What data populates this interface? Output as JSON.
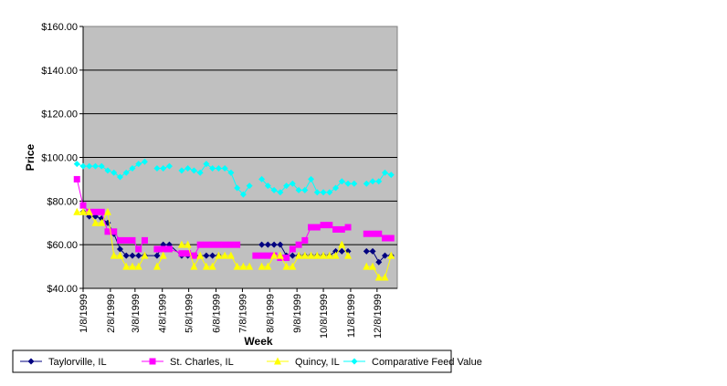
{
  "chart_data": {
    "type": "line",
    "title": "",
    "xlabel": "Week",
    "ylabel": "Price",
    "ylim": [
      40,
      160
    ],
    "y_ticks": [
      40,
      60,
      80,
      100,
      120,
      140,
      160
    ],
    "y_tick_labels": [
      "$40.00",
      "$60.00",
      "$80.00",
      "$100.00",
      "$120.00",
      "$140.00",
      "$160.00"
    ],
    "xlim": [
      "1999-01-08",
      "1999-12-31"
    ],
    "x_tick_labels": [
      {
        "date": "1999-01-08",
        "label": "1/8/1999"
      },
      {
        "date": "1999-02-08",
        "label": "2/8/1999"
      },
      {
        "date": "1999-03-08",
        "label": "3/8/1999"
      },
      {
        "date": "1999-04-08",
        "label": "4/8/1999"
      },
      {
        "date": "1999-05-08",
        "label": "5/8/1999"
      },
      {
        "date": "1999-06-08",
        "label": "6/8/1999"
      },
      {
        "date": "1999-07-08",
        "label": "7/8/1999"
      },
      {
        "date": "1999-08-08",
        "label": "8/8/1999"
      },
      {
        "date": "1999-09-08",
        "label": "9/8/1999"
      },
      {
        "date": "1999-10-08",
        "label": "10/8/1999"
      },
      {
        "date": "1999-11-08",
        "label": "11/8/1999"
      },
      {
        "date": "1999-12-08",
        "label": "12/8/1999"
      }
    ],
    "grid": "horizontal major",
    "plot_background": "#C0C0C0",
    "legend_position": "bottom",
    "series": [
      {
        "name": "Taylorville, IL",
        "color": "#000080",
        "marker": "diamond",
        "points": [
          [
            "1999-01-08",
            75
          ],
          [
            "1999-01-15",
            73
          ],
          [
            "1999-01-22",
            73
          ],
          [
            "1999-01-29",
            72
          ],
          [
            "1999-02-05",
            70
          ],
          [
            "1999-02-12",
            65
          ],
          [
            "1999-02-19",
            58
          ],
          [
            "1999-02-26",
            55
          ],
          [
            "1999-03-05",
            55
          ],
          [
            "1999-03-12",
            55
          ],
          [
            "1999-03-19",
            55
          ],
          [
            "1999-04-02",
            55
          ],
          [
            "1999-04-09",
            60
          ],
          [
            "1999-04-16",
            60
          ],
          [
            "1999-04-30",
            55
          ],
          [
            "1999-05-07",
            55
          ],
          [
            "1999-05-14",
            55
          ],
          [
            "1999-05-28",
            55
          ],
          [
            "1999-06-04",
            55
          ],
          [
            "1999-06-11",
            55
          ]
        ]
      },
      {
        "name": "Taylorville, IL",
        "color": "#000080",
        "marker": "diamond",
        "points": [
          [
            "1999-07-30",
            60
          ],
          [
            "1999-08-06",
            60
          ],
          [
            "1999-08-13",
            60
          ],
          [
            "1999-08-20",
            60
          ],
          [
            "1999-08-27",
            55
          ],
          [
            "1999-09-03",
            55
          ],
          [
            "1999-09-10",
            55
          ],
          [
            "1999-09-17",
            55
          ],
          [
            "1999-09-24",
            55
          ],
          [
            "1999-10-01",
            55
          ],
          [
            "1999-10-08",
            55
          ],
          [
            "1999-10-15",
            55
          ],
          [
            "1999-10-22",
            57
          ],
          [
            "1999-10-29",
            57
          ],
          [
            "1999-11-05",
            57
          ]
        ]
      },
      {
        "name": "Taylorville, IL",
        "color": "#000080",
        "marker": "diamond",
        "points": [
          [
            "1999-11-26",
            57
          ],
          [
            "1999-12-03",
            57
          ],
          [
            "1999-12-10",
            52
          ],
          [
            "1999-12-17",
            55
          ],
          [
            "1999-12-24",
            55
          ]
        ]
      },
      {
        "name": "St. Charles, IL",
        "color": "#FF00FF",
        "marker": "square",
        "points": [
          [
            "1999-01-01",
            90
          ],
          [
            "1999-01-08",
            78
          ],
          [
            "1999-01-15",
            75
          ],
          [
            "1999-01-22",
            75
          ],
          [
            "1999-01-29",
            75
          ],
          [
            "1999-02-05",
            66
          ],
          [
            "1999-02-12",
            66
          ],
          [
            "1999-02-19",
            62
          ],
          [
            "1999-02-26",
            62
          ],
          [
            "1999-03-05",
            62
          ],
          [
            "1999-03-12",
            58
          ],
          [
            "1999-03-19",
            62
          ]
        ]
      },
      {
        "name": "St. Charles, IL",
        "color": "#FF00FF",
        "marker": "square",
        "points": [
          [
            "1999-04-02",
            58
          ],
          [
            "1999-04-09",
            58
          ],
          [
            "1999-04-16",
            58
          ],
          [
            "1999-04-30",
            56
          ],
          [
            "1999-05-07",
            56
          ],
          [
            "1999-05-14",
            55
          ],
          [
            "1999-05-21",
            60
          ],
          [
            "1999-05-28",
            60
          ],
          [
            "1999-06-04",
            60
          ],
          [
            "1999-06-11",
            60
          ],
          [
            "1999-06-18",
            60
          ],
          [
            "1999-06-25",
            60
          ],
          [
            "1999-07-02",
            60
          ]
        ]
      },
      {
        "name": "St. Charles, IL",
        "color": "#FF00FF",
        "marker": "square",
        "points": [
          [
            "1999-07-23",
            55
          ],
          [
            "1999-07-30",
            55
          ],
          [
            "1999-08-06",
            55
          ],
          [
            "1999-08-13",
            55
          ],
          [
            "1999-08-20",
            54
          ],
          [
            "1999-08-27",
            54
          ],
          [
            "1999-09-03",
            58
          ],
          [
            "1999-09-10",
            60
          ],
          [
            "1999-09-17",
            62
          ],
          [
            "1999-09-24",
            68
          ],
          [
            "1999-10-01",
            68
          ],
          [
            "1999-10-08",
            69
          ],
          [
            "1999-10-15",
            69
          ],
          [
            "1999-10-22",
            67
          ],
          [
            "1999-10-29",
            67
          ],
          [
            "1999-11-05",
            68
          ]
        ]
      },
      {
        "name": "St. Charles, IL",
        "color": "#FF00FF",
        "marker": "square",
        "points": [
          [
            "1999-11-26",
            65
          ],
          [
            "1999-12-03",
            65
          ],
          [
            "1999-12-10",
            65
          ],
          [
            "1999-12-17",
            63
          ],
          [
            "1999-12-24",
            63
          ]
        ]
      },
      {
        "name": "Quincy, IL",
        "color": "#FFFF00",
        "marker": "triangle",
        "points": [
          [
            "1999-01-01",
            75
          ],
          [
            "1999-01-08",
            75
          ],
          [
            "1999-01-15",
            75
          ],
          [
            "1999-01-22",
            70
          ],
          [
            "1999-01-29",
            70
          ],
          [
            "1999-02-05",
            75
          ],
          [
            "1999-02-12",
            55
          ],
          [
            "1999-02-19",
            55
          ],
          [
            "1999-02-26",
            50
          ],
          [
            "1999-03-05",
            50
          ],
          [
            "1999-03-12",
            50
          ],
          [
            "1999-03-19",
            55
          ]
        ]
      },
      {
        "name": "Quincy, IL",
        "color": "#FFFF00",
        "marker": "triangle",
        "points": [
          [
            "1999-04-02",
            50
          ],
          [
            "1999-04-09",
            55
          ]
        ]
      },
      {
        "name": "Quincy, IL",
        "color": "#FFFF00",
        "marker": "triangle",
        "points": [
          [
            "1999-04-30",
            60
          ],
          [
            "1999-05-07",
            60
          ],
          [
            "1999-05-14",
            50
          ],
          [
            "1999-05-21",
            55
          ],
          [
            "1999-05-28",
            50
          ],
          [
            "1999-06-04",
            50
          ],
          [
            "1999-06-11",
            55
          ],
          [
            "1999-06-18",
            55
          ],
          [
            "1999-06-25",
            55
          ],
          [
            "1999-07-02",
            50
          ],
          [
            "1999-07-09",
            50
          ],
          [
            "1999-07-16",
            50
          ]
        ]
      },
      {
        "name": "Quincy, IL",
        "color": "#FFFF00",
        "marker": "triangle",
        "points": [
          [
            "1999-07-30",
            50
          ],
          [
            "1999-08-06",
            50
          ],
          [
            "1999-08-13",
            55
          ],
          [
            "1999-08-20",
            55
          ],
          [
            "1999-08-27",
            50
          ],
          [
            "1999-09-03",
            50
          ],
          [
            "1999-09-10",
            55
          ],
          [
            "1999-09-17",
            55
          ],
          [
            "1999-09-24",
            55
          ],
          [
            "1999-10-01",
            55
          ],
          [
            "1999-10-08",
            55
          ],
          [
            "1999-10-15",
            55
          ],
          [
            "1999-10-22",
            55
          ],
          [
            "1999-10-29",
            60
          ],
          [
            "1999-11-05",
            55
          ]
        ]
      },
      {
        "name": "Quincy, IL",
        "color": "#FFFF00",
        "marker": "triangle",
        "points": [
          [
            "1999-11-26",
            50
          ],
          [
            "1999-12-03",
            50
          ],
          [
            "1999-12-10",
            45
          ],
          [
            "1999-12-17",
            45
          ],
          [
            "1999-12-24",
            55
          ]
        ]
      },
      {
        "name": "Comparative Feed Value",
        "color": "#00FFFF",
        "marker": "diamond",
        "points": [
          [
            "1999-01-01",
            97
          ],
          [
            "1999-01-08",
            96
          ],
          [
            "1999-01-15",
            96
          ],
          [
            "1999-01-22",
            96
          ],
          [
            "1999-01-29",
            96
          ],
          [
            "1999-02-05",
            94
          ],
          [
            "1999-02-12",
            93
          ],
          [
            "1999-02-19",
            91
          ],
          [
            "1999-02-26",
            93
          ],
          [
            "1999-03-05",
            95
          ],
          [
            "1999-03-12",
            97
          ],
          [
            "1999-03-19",
            98
          ]
        ]
      },
      {
        "name": "Comparative Feed Value",
        "color": "#00FFFF",
        "marker": "diamond",
        "points": [
          [
            "1999-04-02",
            95
          ],
          [
            "1999-04-09",
            95
          ],
          [
            "1999-04-16",
            96
          ]
        ]
      },
      {
        "name": "Comparative Feed Value",
        "color": "#00FFFF",
        "marker": "diamond",
        "points": [
          [
            "1999-04-30",
            94
          ],
          [
            "1999-05-07",
            95
          ],
          [
            "1999-05-14",
            94
          ],
          [
            "1999-05-21",
            93
          ],
          [
            "1999-05-28",
            97
          ],
          [
            "1999-06-04",
            95
          ],
          [
            "1999-06-11",
            95
          ],
          [
            "1999-06-18",
            95
          ],
          [
            "1999-06-25",
            93
          ],
          [
            "1999-07-02",
            86
          ],
          [
            "1999-07-09",
            83
          ],
          [
            "1999-07-16",
            87
          ]
        ]
      },
      {
        "name": "Comparative Feed Value",
        "color": "#00FFFF",
        "marker": "diamond",
        "points": [
          [
            "1999-07-30",
            90
          ],
          [
            "1999-08-06",
            87
          ],
          [
            "1999-08-13",
            85
          ],
          [
            "1999-08-20",
            84
          ],
          [
            "1999-08-27",
            87
          ],
          [
            "1999-09-03",
            88
          ],
          [
            "1999-09-10",
            85
          ],
          [
            "1999-09-17",
            85
          ],
          [
            "1999-09-24",
            90
          ],
          [
            "1999-10-01",
            84
          ],
          [
            "1999-10-08",
            84
          ],
          [
            "1999-10-15",
            84
          ],
          [
            "1999-10-22",
            86
          ],
          [
            "1999-10-29",
            89
          ],
          [
            "1999-11-05",
            88
          ],
          [
            "1999-11-12",
            88
          ]
        ]
      },
      {
        "name": "Comparative Feed Value",
        "color": "#00FFFF",
        "marker": "diamond",
        "points": [
          [
            "1999-11-26",
            88
          ],
          [
            "1999-12-03",
            89
          ],
          [
            "1999-12-10",
            89
          ],
          [
            "1999-12-17",
            93
          ],
          [
            "1999-12-24",
            92
          ]
        ]
      }
    ],
    "legend": [
      {
        "name": "Taylorville, IL",
        "color": "#000080",
        "marker": "diamond"
      },
      {
        "name": "St. Charles, IL",
        "color": "#FF00FF",
        "marker": "square"
      },
      {
        "name": "Quincy, IL",
        "color": "#FFFF00",
        "marker": "triangle"
      },
      {
        "name": "Comparative Feed Value",
        "color": "#00FFFF",
        "marker": "diamond"
      }
    ]
  }
}
